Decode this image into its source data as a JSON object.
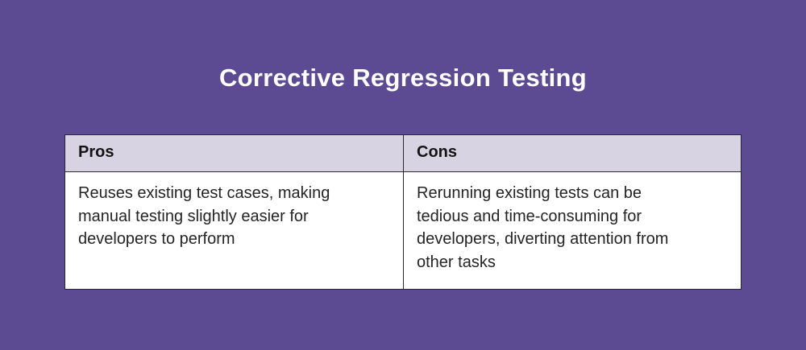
{
  "title": "Corrective Regression Testing",
  "colors": {
    "background": "#5c4a93",
    "header_bg": "#d7d3e2",
    "cell_bg": "#ffffff",
    "border": "#2a2730",
    "title_text": "#ffffff",
    "body_text": "#242424"
  },
  "table": {
    "columns": [
      {
        "header": "Pros",
        "text": "Reuses existing test cases, making\nmanual testing slightly easier for\ndevelopers to perform"
      },
      {
        "header": "Cons",
        "text": "Rerunning existing tests can be\ntedious and time-consuming for\ndevelopers, diverting attention from\nother tasks"
      }
    ]
  }
}
